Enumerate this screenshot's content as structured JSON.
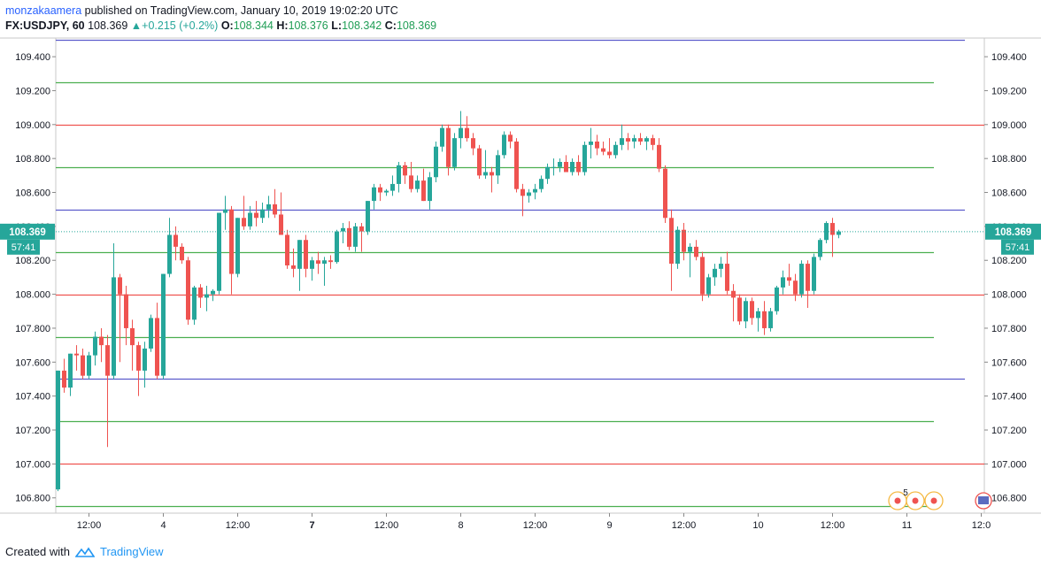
{
  "header": {
    "author": "monzakaamera",
    "published": " published on TradingView.com, January 10, 2019 19:02:20 UTC",
    "symbol": "FX:USDJPY, 60",
    "last": "108.369",
    "change": "+0.215 (+0.2%)",
    "o_label": "O:",
    "o": "108.344",
    "h_label": "H:",
    "h": "108.376",
    "l_label": "L:",
    "l": "108.342",
    "c_label": "C:",
    "c": "108.369"
  },
  "footer": {
    "created_with": "Created with",
    "brand": "TradingView"
  },
  "colors": {
    "up": "#26a69a",
    "down": "#ef5350",
    "level_red": "#ef5350",
    "level_green": "#4caf50",
    "level_blue": "#5c5ccc",
    "last_price": "#26a69a"
  },
  "chart_data": {
    "type": "candlestick",
    "ylim": [
      106.71,
      109.51
    ],
    "yticks": [
      "109.400",
      "109.200",
      "109.000",
      "108.800",
      "108.600",
      "108.400",
      "108.200",
      "108.000",
      "107.800",
      "107.600",
      "107.400",
      "107.200",
      "107.000",
      "106.800"
    ],
    "xticks": [
      {
        "label": "12:00",
        "bold": false,
        "i": 5
      },
      {
        "label": "4",
        "bold": false,
        "i": 17
      },
      {
        "label": "12:00",
        "bold": false,
        "i": 29
      },
      {
        "label": "7",
        "bold": true,
        "i": 41
      },
      {
        "label": "12:00",
        "bold": false,
        "i": 53
      },
      {
        "label": "8",
        "bold": false,
        "i": 65
      },
      {
        "label": "12:00",
        "bold": false,
        "i": 77
      },
      {
        "label": "9",
        "bold": false,
        "i": 89
      },
      {
        "label": "12:00",
        "bold": false,
        "i": 101
      },
      {
        "label": "10",
        "bold": false,
        "i": 113
      },
      {
        "label": "12:00",
        "bold": false,
        "i": 125
      },
      {
        "label": "11",
        "bold": false,
        "i": 137
      },
      {
        "label": "12:0",
        "bold": false,
        "i": 149
      }
    ],
    "levels": [
      {
        "price": 109.5,
        "color": "blue"
      },
      {
        "price": 109.25,
        "color": "green"
      },
      {
        "price": 109.0,
        "color": "red"
      },
      {
        "price": 108.75,
        "color": "green"
      },
      {
        "price": 108.5,
        "color": "blue"
      },
      {
        "price": 108.25,
        "color": "green"
      },
      {
        "price": 108.0,
        "color": "red"
      },
      {
        "price": 107.75,
        "color": "green"
      },
      {
        "price": 107.5,
        "color": "blue"
      },
      {
        "price": 107.25,
        "color": "green"
      },
      {
        "price": 107.0,
        "color": "red"
      },
      {
        "price": 106.75,
        "color": "green"
      }
    ],
    "last_price": {
      "value": 108.369,
      "label": "108.369",
      "countdown": "57:41"
    },
    "events_badge": "5",
    "candles": [
      [
        106.85,
        107.55,
        106.84,
        107.55
      ],
      [
        107.55,
        107.62,
        107.42,
        107.45
      ],
      [
        107.45,
        107.65,
        107.4,
        107.65
      ],
      [
        107.65,
        107.7,
        107.55,
        107.64
      ],
      [
        107.64,
        107.68,
        107.5,
        107.52
      ],
      [
        107.52,
        107.66,
        107.5,
        107.64
      ],
      [
        107.64,
        107.78,
        107.58,
        107.75
      ],
      [
        107.75,
        107.8,
        107.6,
        107.7
      ],
      [
        107.7,
        107.76,
        107.1,
        107.52
      ],
      [
        107.52,
        108.3,
        107.5,
        108.1
      ],
      [
        108.1,
        108.12,
        107.6,
        108.0
      ],
      [
        108.0,
        108.05,
        107.7,
        107.8
      ],
      [
        107.8,
        107.85,
        107.55,
        107.7
      ],
      [
        107.7,
        107.72,
        107.4,
        107.55
      ],
      [
        107.55,
        107.72,
        107.45,
        107.68
      ],
      [
        107.68,
        107.88,
        107.66,
        107.86
      ],
      [
        107.86,
        107.95,
        107.5,
        107.52
      ],
      [
        107.52,
        108.12,
        107.5,
        108.12
      ],
      [
        108.12,
        108.45,
        108.1,
        108.35
      ],
      [
        108.35,
        108.4,
        108.2,
        108.28
      ],
      [
        108.28,
        108.3,
        108.18,
        108.2
      ],
      [
        108.2,
        108.22,
        107.82,
        107.85
      ],
      [
        107.85,
        108.05,
        107.82,
        108.04
      ],
      [
        108.04,
        108.06,
        107.92,
        107.98
      ],
      [
        107.98,
        108.05,
        107.9,
        108.0
      ],
      [
        108.0,
        108.03,
        107.96,
        108.02
      ],
      [
        108.02,
        108.48,
        108.0,
        108.48
      ],
      [
        108.48,
        108.58,
        108.38,
        108.5
      ],
      [
        108.5,
        108.52,
        108.0,
        108.12
      ],
      [
        108.12,
        108.45,
        108.1,
        108.45
      ],
      [
        108.45,
        108.58,
        108.38,
        108.4
      ],
      [
        108.4,
        108.52,
        108.38,
        108.48
      ],
      [
        108.48,
        108.55,
        108.4,
        108.45
      ],
      [
        108.45,
        108.54,
        108.42,
        108.5
      ],
      [
        108.5,
        108.58,
        108.45,
        108.53
      ],
      [
        108.53,
        108.62,
        108.45,
        108.47
      ],
      [
        108.47,
        108.6,
        108.35,
        108.35
      ],
      [
        108.35,
        108.38,
        108.15,
        108.17
      ],
      [
        108.17,
        108.27,
        108.1,
        108.15
      ],
      [
        108.15,
        108.32,
        108.02,
        108.32
      ],
      [
        108.32,
        108.35,
        108.1,
        108.15
      ],
      [
        108.15,
        108.22,
        108.08,
        108.2
      ],
      [
        108.2,
        108.25,
        108.12,
        108.18
      ],
      [
        108.18,
        108.22,
        108.05,
        108.2
      ],
      [
        108.2,
        108.23,
        108.15,
        108.19
      ],
      [
        108.19,
        108.38,
        108.18,
        108.37
      ],
      [
        108.37,
        108.42,
        108.3,
        108.39
      ],
      [
        108.39,
        108.43,
        108.26,
        108.28
      ],
      [
        108.28,
        108.42,
        108.25,
        108.4
      ],
      [
        108.4,
        108.42,
        108.25,
        108.37
      ],
      [
        108.37,
        108.55,
        108.35,
        108.55
      ],
      [
        108.55,
        108.65,
        108.5,
        108.63
      ],
      [
        108.63,
        108.65,
        108.55,
        108.6
      ],
      [
        108.6,
        108.62,
        108.58,
        108.61
      ],
      [
        108.61,
        108.7,
        108.58,
        108.65
      ],
      [
        108.65,
        108.78,
        108.6,
        108.76
      ],
      [
        108.76,
        108.78,
        108.65,
        108.7
      ],
      [
        108.7,
        108.78,
        108.6,
        108.62
      ],
      [
        108.62,
        108.7,
        108.6,
        108.67
      ],
      [
        108.67,
        108.74,
        108.55,
        108.55
      ],
      [
        108.55,
        108.72,
        108.5,
        108.69
      ],
      [
        108.69,
        108.9,
        108.66,
        108.87
      ],
      [
        108.87,
        109.0,
        108.84,
        108.98
      ],
      [
        108.98,
        109.0,
        108.7,
        108.75
      ],
      [
        108.75,
        108.95,
        108.73,
        108.92
      ],
      [
        108.92,
        109.08,
        108.86,
        108.98
      ],
      [
        108.98,
        109.05,
        108.9,
        108.92
      ],
      [
        108.92,
        108.95,
        108.82,
        108.86
      ],
      [
        108.86,
        108.88,
        108.68,
        108.7
      ],
      [
        108.7,
        108.85,
        108.68,
        108.72
      ],
      [
        108.72,
        108.75,
        108.6,
        108.7
      ],
      [
        108.7,
        108.85,
        108.65,
        108.82
      ],
      [
        108.82,
        108.96,
        108.8,
        108.94
      ],
      [
        108.94,
        108.96,
        108.86,
        108.9
      ],
      [
        108.9,
        108.92,
        108.6,
        108.62
      ],
      [
        108.62,
        108.65,
        108.46,
        108.58
      ],
      [
        108.58,
        108.62,
        108.54,
        108.6
      ],
      [
        108.6,
        108.65,
        108.56,
        108.62
      ],
      [
        108.62,
        108.7,
        108.6,
        108.68
      ],
      [
        108.68,
        108.77,
        108.65,
        108.75
      ],
      [
        108.75,
        108.8,
        108.7,
        108.75
      ],
      [
        108.75,
        108.8,
        108.72,
        108.78
      ],
      [
        108.78,
        108.82,
        108.72,
        108.72
      ],
      [
        108.72,
        108.8,
        108.7,
        108.78
      ],
      [
        108.78,
        108.82,
        108.7,
        108.72
      ],
      [
        108.72,
        108.9,
        108.7,
        108.88
      ],
      [
        108.88,
        108.98,
        108.8,
        108.9
      ],
      [
        108.9,
        108.94,
        108.82,
        108.86
      ],
      [
        108.86,
        108.9,
        108.82,
        108.84
      ],
      [
        108.84,
        108.92,
        108.8,
        108.82
      ],
      [
        108.82,
        108.9,
        108.8,
        108.88
      ],
      [
        108.88,
        109.0,
        108.85,
        108.92
      ],
      [
        108.92,
        108.95,
        108.85,
        108.9
      ],
      [
        108.9,
        108.94,
        108.86,
        108.92
      ],
      [
        108.92,
        108.95,
        108.88,
        108.9
      ],
      [
        108.9,
        108.93,
        108.85,
        108.92
      ],
      [
        108.92,
        108.94,
        108.85,
        108.88
      ],
      [
        108.88,
        108.92,
        108.72,
        108.74
      ],
      [
        108.74,
        108.76,
        108.42,
        108.45
      ],
      [
        108.45,
        108.5,
        108.02,
        108.18
      ],
      [
        108.18,
        108.4,
        108.15,
        108.38
      ],
      [
        108.38,
        108.42,
        108.2,
        108.25
      ],
      [
        108.25,
        108.3,
        108.1,
        108.28
      ],
      [
        108.28,
        108.32,
        108.2,
        108.22
      ],
      [
        108.22,
        108.25,
        107.96,
        108.0
      ],
      [
        108.0,
        108.12,
        107.98,
        108.1
      ],
      [
        108.1,
        108.18,
        108.05,
        108.15
      ],
      [
        108.15,
        108.22,
        108.1,
        108.18
      ],
      [
        108.18,
        108.25,
        108.0,
        108.02
      ],
      [
        108.02,
        108.06,
        107.84,
        107.98
      ],
      [
        107.98,
        108.0,
        107.82,
        107.84
      ],
      [
        107.84,
        107.98,
        107.8,
        107.96
      ],
      [
        107.96,
        107.98,
        107.82,
        107.86
      ],
      [
        107.86,
        107.92,
        107.78,
        107.9
      ],
      [
        107.9,
        107.96,
        107.76,
        107.8
      ],
      [
        107.8,
        107.92,
        107.78,
        107.9
      ],
      [
        107.9,
        108.05,
        107.88,
        108.04
      ],
      [
        108.04,
        108.14,
        108.0,
        108.1
      ],
      [
        108.1,
        108.18,
        108.05,
        108.08
      ],
      [
        108.08,
        108.12,
        107.96,
        108.0
      ],
      [
        108.0,
        108.2,
        107.98,
        108.18
      ],
      [
        108.18,
        108.2,
        107.92,
        108.02
      ],
      [
        108.02,
        108.24,
        108.0,
        108.22
      ],
      [
        108.22,
        108.33,
        108.2,
        108.32
      ],
      [
        108.32,
        108.43,
        108.3,
        108.42
      ],
      [
        108.42,
        108.45,
        108.22,
        108.35
      ],
      [
        108.35,
        108.38,
        108.33,
        108.37
      ]
    ]
  }
}
